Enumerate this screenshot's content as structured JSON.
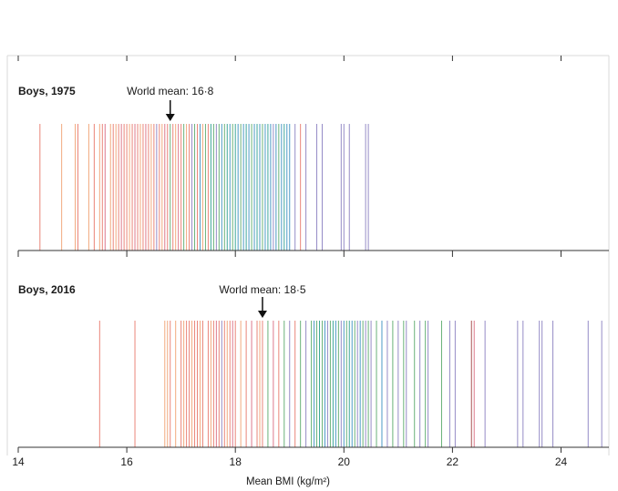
{
  "chart_data": {
    "type": "strip",
    "xlabel": "Mean BMI (kg/m²)",
    "xlim": [
      14,
      25
    ],
    "x_ticks": [
      14,
      16,
      18,
      20,
      22,
      24
    ],
    "x_tick_labels": [
      "14",
      "16",
      "18",
      "20",
      "22",
      "24"
    ],
    "grid": false,
    "region_colors": [
      "#e8786a",
      "#f0a070",
      "#d96a80",
      "#5aaa6a",
      "#3a8fc0",
      "#2a9d8f",
      "#8a7fc0",
      "#a04040"
    ],
    "panels": [
      {
        "title": "Boys, 1975",
        "mean_label": "World mean: 16·8",
        "world_mean": 16.8,
        "values": [
          14.4,
          14.8,
          15.05,
          15.1,
          15.3,
          15.4,
          15.5,
          15.55,
          15.6,
          15.7,
          15.75,
          15.8,
          15.85,
          15.9,
          15.95,
          16.0,
          16.05,
          16.1,
          16.15,
          16.2,
          16.25,
          16.3,
          16.35,
          16.4,
          16.45,
          16.5,
          16.55,
          16.6,
          16.65,
          16.7,
          16.75,
          16.8,
          16.85,
          16.9,
          16.95,
          17.0,
          17.05,
          17.1,
          17.15,
          17.2,
          17.25,
          17.3,
          17.35,
          17.4,
          17.45,
          17.5,
          17.55,
          17.6,
          17.65,
          17.7,
          17.75,
          17.8,
          17.85,
          17.9,
          17.95,
          18.0,
          18.05,
          18.1,
          18.15,
          18.2,
          18.25,
          18.3,
          18.35,
          18.4,
          18.45,
          18.5,
          18.55,
          18.6,
          18.65,
          18.7,
          18.75,
          18.8,
          18.85,
          18.9,
          18.95,
          19.0,
          19.1,
          19.2,
          19.3,
          19.5,
          19.6,
          19.95,
          20.0,
          20.1,
          20.4,
          20.45
        ],
        "colors": [
          "#e8786a",
          "#f0a070",
          "#f0a070",
          "#e8786a",
          "#f0a070",
          "#e8786a",
          "#f0a070",
          "#e8786a",
          "#d96a80",
          "#f0a070",
          "#e8786a",
          "#f0a070",
          "#e8786a",
          "#d96a80",
          "#e8786a",
          "#e8786a",
          "#f0a070",
          "#e8786a",
          "#d96a80",
          "#e8786a",
          "#f0a070",
          "#e8786a",
          "#d96a80",
          "#e8786a",
          "#f0a070",
          "#e8786a",
          "#8a7fc0",
          "#e8786a",
          "#f0a070",
          "#d96a80",
          "#e8786a",
          "#5aaa6a",
          "#e8786a",
          "#f0a070",
          "#d96a80",
          "#e8786a",
          "#5aaa6a",
          "#f0a070",
          "#e8786a",
          "#8a7fc0",
          "#5aaa6a",
          "#e8786a",
          "#3a8fc0",
          "#f0a070",
          "#5aaa6a",
          "#e8786a",
          "#2a9d8f",
          "#5aaa6a",
          "#8a7fc0",
          "#5aaa6a",
          "#3a8fc0",
          "#5aaa6a",
          "#2a9d8f",
          "#3a8fc0",
          "#5aaa6a",
          "#2a9d8f",
          "#3a8fc0",
          "#5aaa6a",
          "#3a8fc0",
          "#2a9d8f",
          "#3a8fc0",
          "#5aaa6a",
          "#3a8fc0",
          "#2a9d8f",
          "#3a8fc0",
          "#5aaa6a",
          "#3a8fc0",
          "#2a9d8f",
          "#3a8fc0",
          "#8a7fc0",
          "#3a8fc0",
          "#5aaa6a",
          "#3a8fc0",
          "#2a9d8f",
          "#3a8fc0",
          "#3a8fc0",
          "#8a7fc0",
          "#e8786a",
          "#8a7fc0",
          "#8a7fc0",
          "#8a7fc0",
          "#8a7fc0",
          "#8a7fc0",
          "#8a7fc0",
          "#8a7fc0",
          "#8a7fc0"
        ]
      },
      {
        "title": "Boys, 2016",
        "mean_label": "World mean: 18·5",
        "world_mean": 18.5,
        "values": [
          15.5,
          16.15,
          16.7,
          16.75,
          16.8,
          16.9,
          17.0,
          17.05,
          17.1,
          17.15,
          17.2,
          17.25,
          17.3,
          17.35,
          17.4,
          17.5,
          17.55,
          17.6,
          17.65,
          17.7,
          17.75,
          17.8,
          17.85,
          17.9,
          17.95,
          18.0,
          18.1,
          18.2,
          18.3,
          18.4,
          18.45,
          18.5,
          18.6,
          18.7,
          18.8,
          18.9,
          19.0,
          19.1,
          19.2,
          19.3,
          19.4,
          19.45,
          19.5,
          19.55,
          19.6,
          19.65,
          19.7,
          19.75,
          19.8,
          19.85,
          19.9,
          19.95,
          20.0,
          20.05,
          20.1,
          20.15,
          20.2,
          20.25,
          20.3,
          20.35,
          20.4,
          20.45,
          20.5,
          20.6,
          20.7,
          20.8,
          20.9,
          21.0,
          21.1,
          21.15,
          21.3,
          21.4,
          21.5,
          21.55,
          21.8,
          21.95,
          22.05,
          22.35,
          22.4,
          22.6,
          23.2,
          23.3,
          23.6,
          23.65,
          23.85,
          24.5,
          24.75
        ],
        "colors": [
          "#e8786a",
          "#e8786a",
          "#f0a070",
          "#f0a070",
          "#e8786a",
          "#f0a070",
          "#e8786a",
          "#f0a070",
          "#e8786a",
          "#e8786a",
          "#f0a070",
          "#e8786a",
          "#e8786a",
          "#f0a070",
          "#e8786a",
          "#e8786a",
          "#f0a070",
          "#e8786a",
          "#d96a80",
          "#e8786a",
          "#8a7fc0",
          "#e8786a",
          "#f0a070",
          "#e8786a",
          "#d96a80",
          "#e8786a",
          "#f0a070",
          "#e8786a",
          "#d96a80",
          "#e8786a",
          "#f0a070",
          "#e8786a",
          "#5aaa6a",
          "#d96a80",
          "#e8786a",
          "#5aaa6a",
          "#8a7fc0",
          "#e8786a",
          "#5aaa6a",
          "#8a7fc0",
          "#5aaa6a",
          "#3a8fc0",
          "#5aaa6a",
          "#2a9d8f",
          "#5aaa6a",
          "#3a8fc0",
          "#8a7fc0",
          "#5aaa6a",
          "#2a9d8f",
          "#3a8fc0",
          "#5aaa6a",
          "#8a7fc0",
          "#3a8fc0",
          "#5aaa6a",
          "#2a9d8f",
          "#3a8fc0",
          "#5aaa6a",
          "#8a7fc0",
          "#3a8fc0",
          "#5aaa6a",
          "#8a7fc0",
          "#5aaa6a",
          "#8a7fc0",
          "#5aaa6a",
          "#3a8fc0",
          "#8a7fc0",
          "#5aaa6a",
          "#8a7fc0",
          "#5aaa6a",
          "#8a7fc0",
          "#5aaa6a",
          "#8a7fc0",
          "#5aaa6a",
          "#8a7fc0",
          "#5aaa6a",
          "#8a7fc0",
          "#8a7fc0",
          "#a04040",
          "#d96a80",
          "#8a7fc0",
          "#8a7fc0",
          "#8a7fc0",
          "#8a7fc0",
          "#8a7fc0",
          "#8a7fc0",
          "#8a7fc0",
          "#8a7fc0"
        ]
      }
    ]
  }
}
